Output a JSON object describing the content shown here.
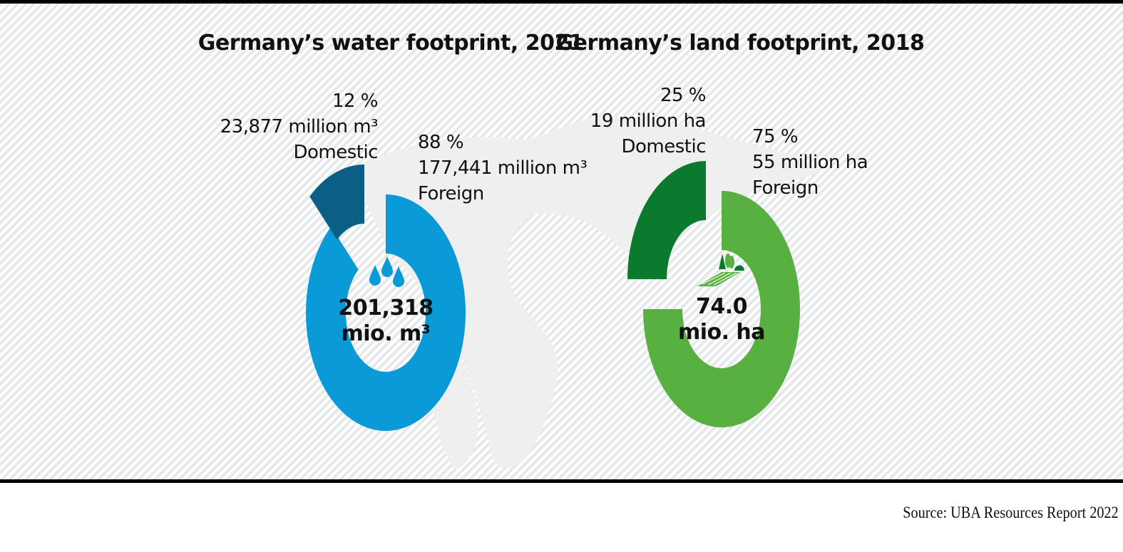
{
  "chart_data": [
    {
      "type": "pie",
      "style": "donut",
      "title": "Germany’s water footprint, 2021",
      "center_label": [
        "201,318",
        "mio. m³"
      ],
      "total": 201318,
      "unit": "million m³",
      "icon": "water-drops-icon",
      "slices": [
        {
          "name": "Domestic",
          "percent": 12,
          "value": 23877,
          "label_lines": [
            "12 %",
            "23,877 million m³",
            "Domestic"
          ],
          "color": "#0b5e85",
          "exploded": true
        },
        {
          "name": "Foreign",
          "percent": 88,
          "value": 177441,
          "label_lines": [
            "88 %",
            "177,441 million m³",
            "Foreign"
          ],
          "color": "#0a9ad8",
          "exploded": false
        }
      ]
    },
    {
      "type": "pie",
      "style": "donut",
      "title": "Germany’s land footprint, 2018",
      "center_label": [
        "74.0",
        "mio. ha"
      ],
      "total": 74.0,
      "unit": "million ha",
      "icon": "farmland-trees-icon",
      "slices": [
        {
          "name": "Domestic",
          "percent": 25,
          "value": 19,
          "label_lines": [
            "25 %",
            "19 million ha",
            "Domestic"
          ],
          "color": "#0c7a2e",
          "exploded": true
        },
        {
          "name": "Foreign",
          "percent": 75,
          "value": 55,
          "label_lines": [
            "75 %",
            "55 million ha",
            "Foreign"
          ],
          "color": "#57b03f",
          "exploded": false
        }
      ]
    }
  ],
  "background": {
    "map": "world-map-silhouette",
    "map_color": "#efefef",
    "stripe_color": "#e6e8e9"
  },
  "source": "Source: UBA Resources Report 2022"
}
